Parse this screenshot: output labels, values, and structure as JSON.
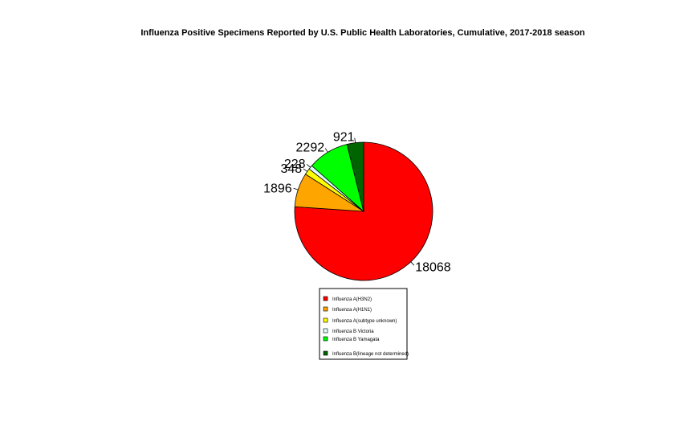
{
  "chart_data": {
    "type": "pie",
    "title": "Influenza Positive Specimens Reported by U.S. Public Health Laboratories, Cumulative, 2017-2018 season",
    "slices": [
      {
        "name": "Influenza A(H3N2)",
        "value": 18068,
        "color": "#ff0000"
      },
      {
        "name": "Influenza A(H1N1)",
        "value": 1896,
        "color": "#ffa500"
      },
      {
        "name": "Influenza A(subtype unknown)",
        "value": 348,
        "color": "#ffff00"
      },
      {
        "name": "Influenza B Victoria",
        "value": 228,
        "color": "#e0ffff"
      },
      {
        "name": "Influenza B Yamagata",
        "value": 2292,
        "color": "#00ff00"
      },
      {
        "name": "Influenza B(lineage not determined)",
        "value": 921,
        "color": "#006400"
      }
    ],
    "legend_position": "bottom"
  }
}
